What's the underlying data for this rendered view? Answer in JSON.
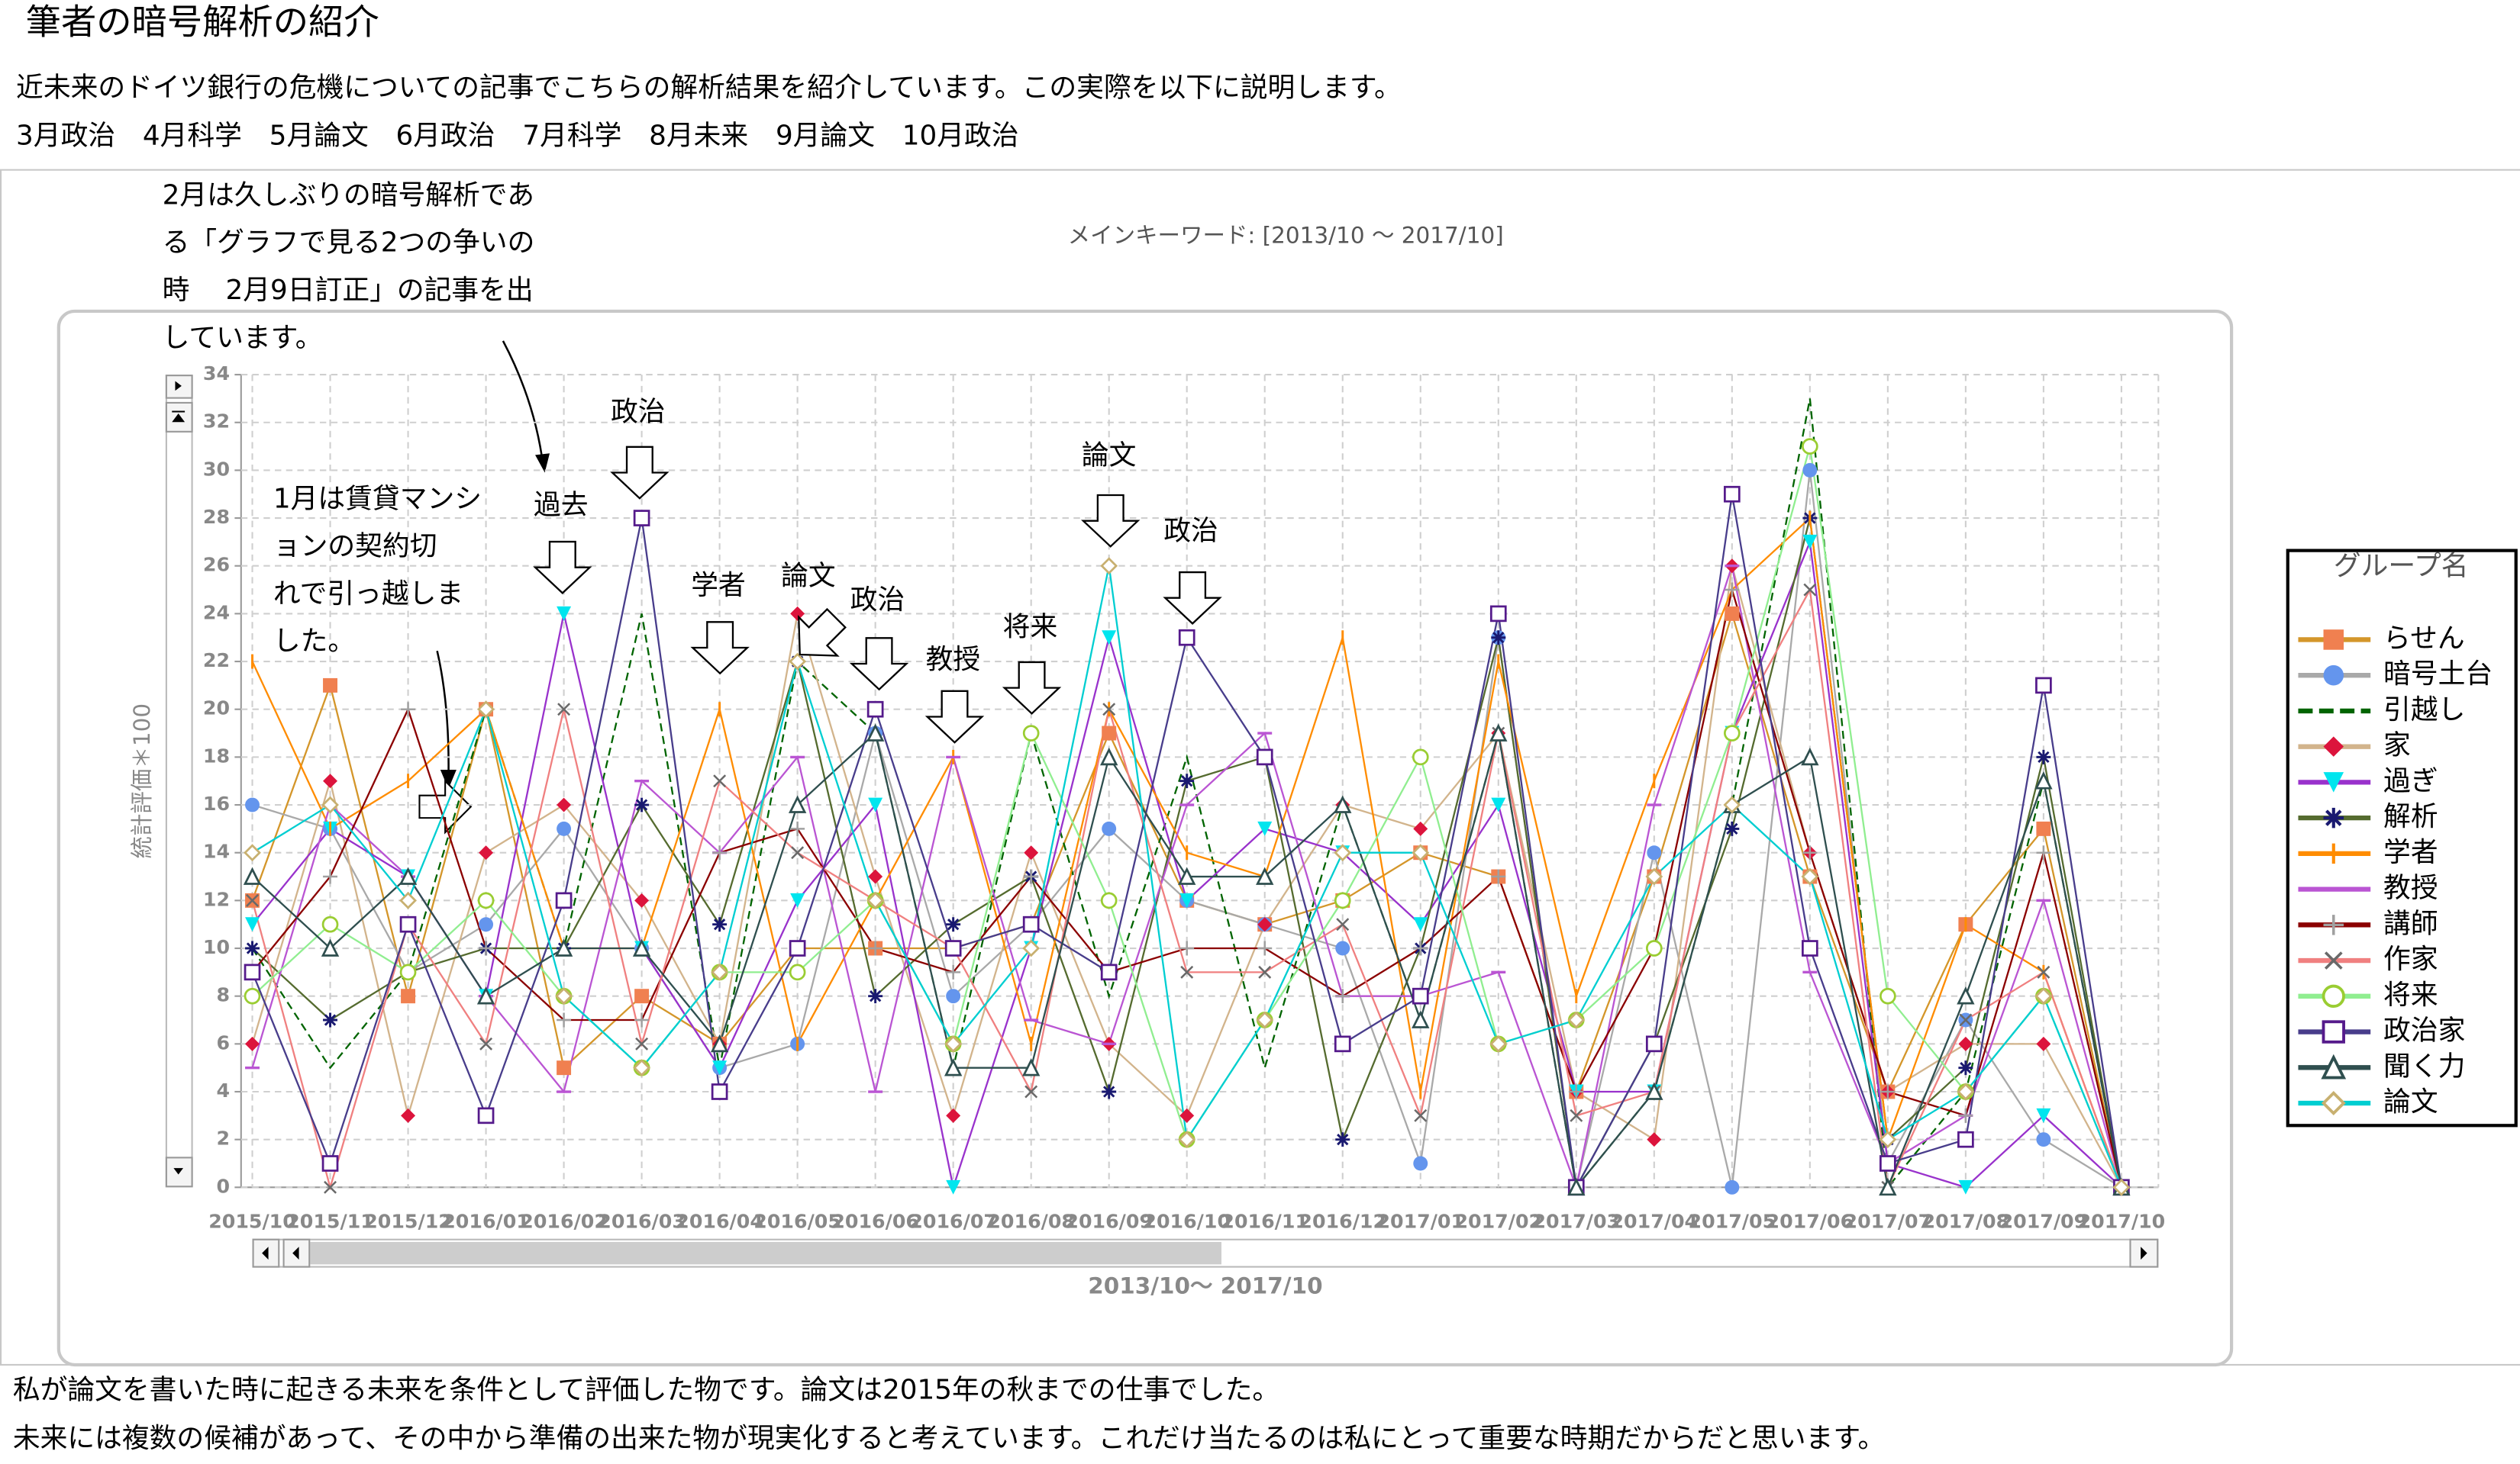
{
  "header": {
    "title": "筆者の暗号解析の紹介",
    "lines": [
      "近未来のドイツ銀行の危機についての記事でこちらの解析結果を紹介しています。この実際を以下に説明します。",
      "3月政治　4月科学　5月論文　6月政治　7月科学　8月未来　9月論文　10月政治"
    ]
  },
  "chart_data": {
    "type": "line",
    "title": "メインキーワード: [2013/10 ～ 2017/10]",
    "xlabel": "2013/10～ 2017/10",
    "ylabel": "統計評価＊100",
    "categories": [
      "2015/10",
      "2015/11",
      "2015/12",
      "2016/01",
      "2016/02",
      "2016/03",
      "2016/04",
      "2016/05",
      "2016/06",
      "2016/07",
      "2016/08",
      "2016/09",
      "2016/10",
      "2016/11",
      "2016/12",
      "2017/01",
      "2017/02",
      "2017/03",
      "2017/04",
      "2017/05",
      "2017/06",
      "2017/07",
      "2017/08",
      "2017/09",
      "2017/10"
    ],
    "ylim": [
      0,
      34
    ],
    "yticks": [
      0,
      2,
      4,
      6,
      8,
      10,
      12,
      14,
      16,
      18,
      20,
      22,
      24,
      26,
      28,
      30,
      32,
      34
    ],
    "grid": true,
    "legend": {
      "title": "グループ名",
      "position": "right"
    },
    "series": [
      {
        "name": "らせん",
        "color": "#d4962a",
        "marker": "square",
        "marker_color": "#f08050",
        "values": [
          12,
          21,
          8,
          20,
          5,
          8,
          6,
          10,
          10,
          10,
          11,
          19,
          12,
          11,
          12,
          14,
          13,
          4,
          13,
          24,
          13,
          4,
          11,
          15,
          0
        ]
      },
      {
        "name": "暗号土台",
        "color": "#a9a9a9",
        "marker": "circle",
        "marker_color": "#6495ed",
        "values": [
          16,
          15,
          9,
          11,
          15,
          10,
          5,
          6,
          19,
          8,
          11,
          15,
          12,
          11,
          10,
          1,
          23,
          0,
          14,
          0,
          30,
          1,
          7,
          2,
          0
        ]
      },
      {
        "name": "引越し",
        "color": "#006400",
        "marker": "none",
        "marker_color": "#006400",
        "line_style": "dashed",
        "values": [
          10,
          5,
          9,
          20,
          10,
          24,
          5,
          22,
          19,
          5,
          19,
          8,
          18,
          5,
          16,
          7,
          19,
          0,
          4,
          16,
          33,
          0,
          4,
          17,
          0
        ]
      },
      {
        "name": "家",
        "color": "#d2b48c",
        "marker": "diamond",
        "marker_color": "#dc143c",
        "values": [
          6,
          17,
          3,
          14,
          16,
          12,
          6,
          24,
          13,
          3,
          14,
          6,
          3,
          11,
          16,
          15,
          19,
          4,
          2,
          26,
          14,
          4,
          6,
          6,
          0
        ]
      },
      {
        "name": "過ぎ",
        "color": "#9932cc",
        "marker": "triangle-down",
        "marker_color": "#00e5ee",
        "values": [
          11,
          15,
          13,
          8,
          24,
          10,
          5,
          12,
          16,
          0,
          10,
          23,
          12,
          15,
          14,
          11,
          16,
          4,
          4,
          19,
          27,
          1,
          0,
          3,
          0
        ]
      },
      {
        "name": "解析",
        "color": "#556b2f",
        "marker": "asterisk",
        "marker_color": "#191970",
        "values": [
          10,
          7,
          9,
          10,
          10,
          16,
          11,
          22,
          8,
          11,
          13,
          4,
          17,
          18,
          2,
          10,
          23,
          0,
          6,
          15,
          28,
          2,
          5,
          18,
          0
        ]
      },
      {
        "name": "学者",
        "color": "#ff8c00",
        "marker": "vbar",
        "marker_color": "#ff8c00",
        "values": [
          22,
          15,
          17,
          20,
          10,
          10,
          20,
          6,
          12,
          18,
          6,
          20,
          14,
          13,
          23,
          4,
          22,
          8,
          17,
          25,
          28,
          2,
          11,
          9,
          0
        ]
      },
      {
        "name": "教授",
        "color": "#ba55d3",
        "marker": "hbar",
        "marker_color": "#ba55d3",
        "values": [
          5,
          16,
          13,
          8,
          4,
          17,
          14,
          18,
          4,
          18,
          7,
          6,
          16,
          19,
          8,
          8,
          9,
          0,
          16,
          26,
          9,
          1,
          3,
          12,
          0
        ]
      },
      {
        "name": "講師",
        "color": "#8b0000",
        "marker": "plus",
        "marker_color": "#a0a0a0",
        "values": [
          9,
          13,
          20,
          10,
          7,
          7,
          14,
          15,
          10,
          9,
          13,
          9,
          10,
          10,
          8,
          10,
          13,
          4,
          10,
          25,
          14,
          4,
          3,
          14,
          0
        ]
      },
      {
        "name": "作家",
        "color": "#f08080",
        "marker": "x",
        "marker_color": "#696969",
        "values": [
          12,
          0,
          11,
          6,
          20,
          6,
          17,
          14,
          12,
          10,
          4,
          20,
          9,
          9,
          11,
          3,
          19,
          3,
          4,
          19,
          25,
          0,
          7,
          9,
          0
        ]
      },
      {
        "name": "将来",
        "color": "#90ee90",
        "marker": "circle-open",
        "marker_color": "#9acd32",
        "values": [
          8,
          11,
          9,
          12,
          8,
          5,
          9,
          9,
          12,
          6,
          19,
          12,
          2,
          7,
          12,
          18,
          6,
          7,
          10,
          19,
          31,
          8,
          4,
          8,
          0
        ]
      },
      {
        "name": "政治家",
        "color": "#483d8b",
        "marker": "square-open",
        "marker_color": "#551a8b",
        "values": [
          9,
          1,
          11,
          3,
          12,
          28,
          4,
          10,
          20,
          10,
          11,
          9,
          23,
          18,
          6,
          8,
          24,
          0,
          6,
          29,
          10,
          1,
          2,
          21,
          0
        ]
      },
      {
        "name": "聞く力",
        "color": "#2f4f4f",
        "marker": "triangle-open",
        "marker_color": "#2f4f4f",
        "values": [
          13,
          10,
          13,
          8,
          10,
          10,
          6,
          16,
          19,
          5,
          5,
          18,
          13,
          13,
          16,
          7,
          19,
          0,
          4,
          16,
          18,
          0,
          8,
          17,
          0
        ]
      },
      {
        "name": "論文",
        "color": "#00ced1",
        "marker": "diamond-open",
        "marker_color": "#c8b070",
        "values": [
          14,
          16,
          12,
          20,
          8,
          5,
          9,
          22,
          12,
          6,
          10,
          26,
          2,
          7,
          14,
          14,
          6,
          7,
          13,
          16,
          13,
          2,
          4,
          8,
          0
        ]
      }
    ],
    "annotations": [
      {
        "lines": [
          "2月は久しぶりの暗号解析であ",
          "る「グラフで見る2つの争いの",
          "時　 2月9日訂正」の記事を出",
          "しています。"
        ]
      },
      {
        "lines": [
          "1月は賃貸マンシ",
          "ョンの契約切",
          "れで引っ越しま",
          "した。"
        ]
      },
      {
        "text": "過去"
      },
      {
        "text": "政治"
      },
      {
        "text": "学者"
      },
      {
        "text": "論文"
      },
      {
        "text": "政治"
      },
      {
        "text": "教授"
      },
      {
        "text": "将来"
      },
      {
        "text": "論文"
      },
      {
        "text": "政治"
      }
    ]
  },
  "footer": {
    "lines": [
      "私が論文を書いた時に起きる未来を条件として評価した物です。論文は2015年の秋までの仕事でした。",
      "未来には複数の候補があって、その中から準備の出来た物が現実化すると考えています。これだけ当たるのは私にとって重要な時期だからだと思います。"
    ]
  }
}
